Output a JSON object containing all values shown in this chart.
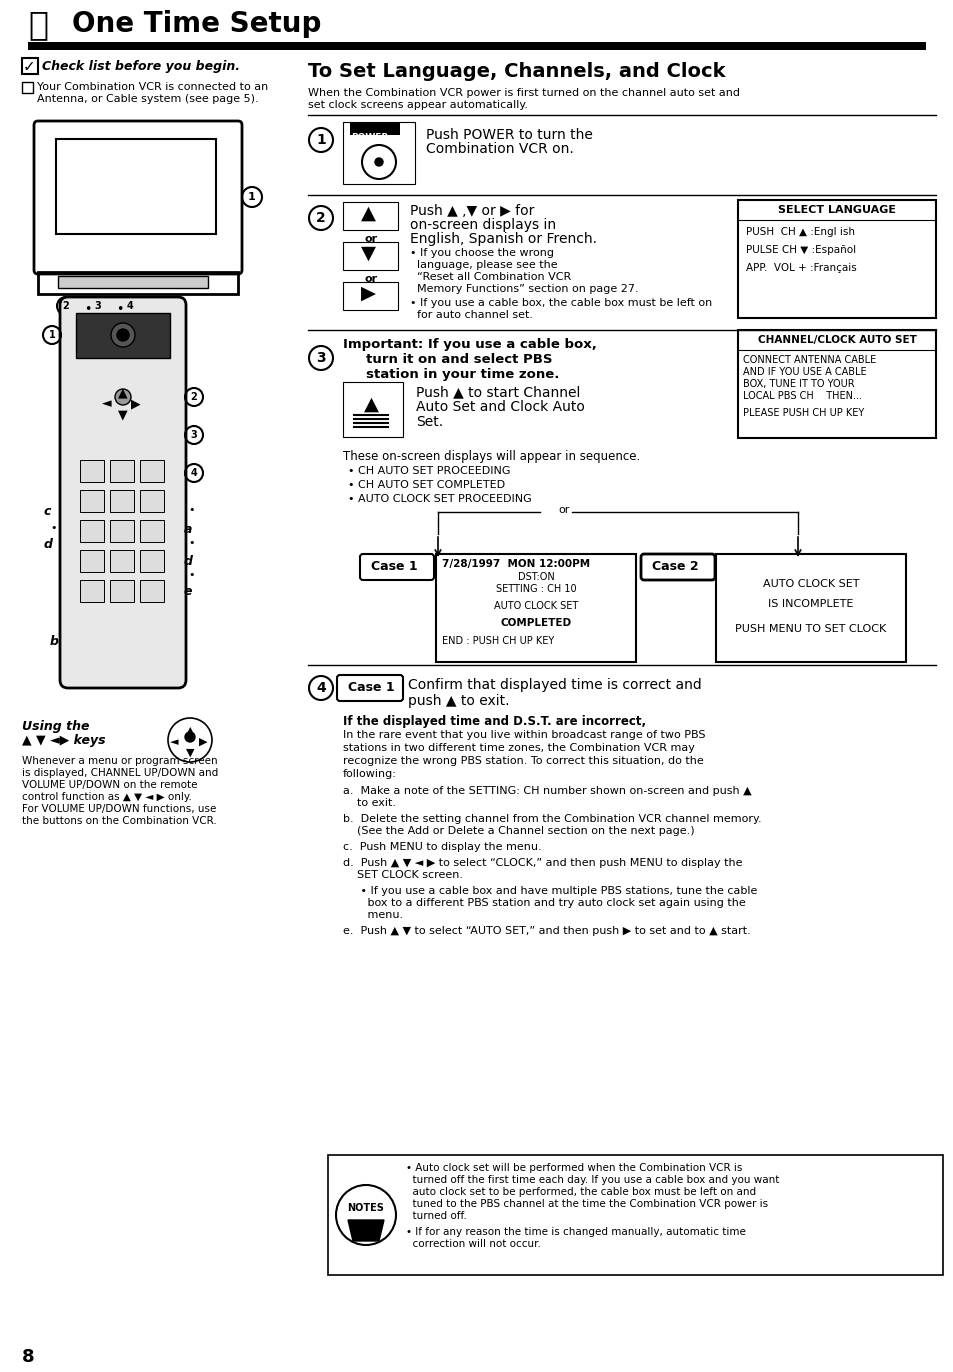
{
  "bg_color": "#ffffff",
  "title": "One Time Setup",
  "section_title": "To Set Language, Channels, and Clock",
  "check_title": "Check list before you begin.",
  "check_text1": "Your Combination VCR is connected to an",
  "check_text2": "Antenna, or Cable system (see page 5).",
  "intro_text1": "When the Combination VCR power is first turned on the channel auto set and",
  "intro_text2": "set clock screens appear automatically.",
  "step1_text1": "Push POWER to turn the",
  "step1_text2": "Combination VCR on.",
  "step2_line1": "Push ▲ ,▼ or ▶ for",
  "step2_line2": "on-screen displays in",
  "step2_line3": "English, Spanish or French.",
  "step2_bullet1a": "• If you choose the wrong",
  "step2_bullet1b": "  language, please see the",
  "step2_bullet1c": "  “Reset all Combination VCR",
  "step2_bullet1d": "  Memory Functions” section on page 27.",
  "step2_bullet2": "• If you use a cable box, the cable box must be left on",
  "step2_bullet2b": "  for auto channel set.",
  "step3_bold1": "Important: If you use a cable box,",
  "step3_bold2": "     turn it on and select PBS",
  "step3_bold3": "     station in your time zone.",
  "step3_text1": "Push ▲ to start Channel",
  "step3_text2": "Auto Set and Clock Auto",
  "step3_text3": "Set.",
  "step3_seq": "These on-screen displays will appear in sequence.",
  "step3_b1": "• CH AUTO SET PROCEEDING",
  "step3_b2": "• CH AUTO SET COMPLETED",
  "step3_b3": "• AUTO CLOCK SET PROCEEDING",
  "case1_label": "Case 1",
  "case2_label": "Case 2",
  "case1_line1": "7/28/1997  MON 12:00PM",
  "case1_line2": "DST:ON",
  "case1_line3": "SETTING : CH 10",
  "case1_line4": "AUTO CLOCK SET",
  "case1_line5": "COMPLETED",
  "case1_line6": "END : PUSH CH UP KEY",
  "case2_line1": "AUTO CLOCK SET",
  "case2_line2": "IS INCOMPLETE",
  "case2_line3": "PUSH MENU TO SET CLOCK",
  "step4_text1": "Confirm that displayed time is correct and",
  "step4_text2": "push ▲ to exit.",
  "step4_sub": "If the displayed time and D.S.T. are incorrect,",
  "step4_body1": "In the rare event that you live within broadcast range of two PBS",
  "step4_body2": "stations in two different time zones, the Combination VCR may",
  "step4_body3": "recognize the wrong PBS station. To correct this situation, do the",
  "step4_body4": "following:",
  "step4_a1": "a.  Make a note of the SETTING: CH number shown on-screen and push ▲",
  "step4_a2": "    to exit.",
  "step4_b1": "b.  Delete the setting channel from the Combination VCR channel memory.",
  "step4_b2": "    (See the Add or Delete a Channel section on the next page.)",
  "step4_c": "c.  Push MENU to display the menu.",
  "step4_d1": "d.  Push ▲ ▼ ◄ ▶ to select “CLOCK,” and then push MENU to display the",
  "step4_d2": "    SET CLOCK screen.",
  "step4_e1": "     • If you use a cable box and have multiple PBS stations, tune the cable",
  "step4_e2": "       box to a different PBS station and try auto clock set again using the",
  "step4_e3": "       menu.",
  "step4_f1": "e.  Push ▲ ▼ to select “AUTO SET,” and then push ▶ to set and to ▲ start.",
  "note1a": "• Auto clock set will be performed when the Combination VCR is",
  "note1b": "  turned off the first time each day. If you use a cable box and you want",
  "note1c": "  auto clock set to be performed, the cable box must be left on and",
  "note1d": "  tuned to the PBS channel at the time the Combination VCR power is",
  "note1e": "  turned off.",
  "note2a": "• If for any reason the time is changed manually, automatic time",
  "note2b": "  correction will not occur.",
  "sl_title": "SELECT LANGUAGE",
  "sl1": "PUSH  CH ▲ :Engl ish",
  "sl2": "PULSE CH ▼ :Español",
  "sl3": "APP.  VOL + :Français",
  "cc_title": "CHANNEL/CLOCK AUTO SET",
  "cc1": "CONNECT ANTENNA CABLE",
  "cc2": "AND IF YOU USE A CABLE",
  "cc3": "BOX, TUNE IT TO YOUR",
  "cc4": "LOCAL PBS CH    THEN...",
  "cc5": "PLEASE PUSH CH UP KEY",
  "using_title": "Using the",
  "using_keys": "▲ ▼ ◄▶ keys",
  "using_body1": "Whenever a menu or program screen",
  "using_body2": "is displayed, CHANNEL UP/DOWN and",
  "using_body3": "VOLUME UP/DOWN on the remote",
  "using_body4": "control function as ▲ ▼ ◄ ▶ only.",
  "using_body5": "For VOLUME UP/DOWN functions, use",
  "using_body6": "the buttons on the Combination VCR.",
  "page_number": "8"
}
